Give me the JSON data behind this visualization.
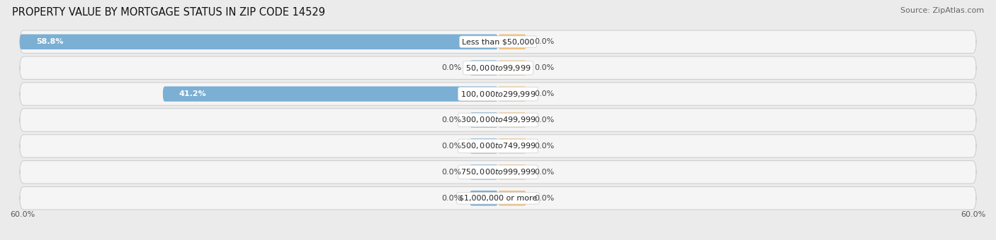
{
  "title": "PROPERTY VALUE BY MORTGAGE STATUS IN ZIP CODE 14529",
  "source": "Source: ZipAtlas.com",
  "categories": [
    "Less than $50,000",
    "$50,000 to $99,999",
    "$100,000 to $299,999",
    "$300,000 to $499,999",
    "$500,000 to $749,999",
    "$750,000 to $999,999",
    "$1,000,000 or more"
  ],
  "without_mortgage": [
    58.8,
    0.0,
    41.2,
    0.0,
    0.0,
    0.0,
    0.0
  ],
  "with_mortgage": [
    0.0,
    0.0,
    0.0,
    0.0,
    0.0,
    0.0,
    0.0
  ],
  "without_mortgage_color": "#7bafd4",
  "with_mortgage_color": "#f0c080",
  "min_bar_width": 3.5,
  "max_val": 60.0,
  "bar_height": 0.58,
  "background_color": "#ebebeb",
  "row_inner_bg": "#f5f5f5",
  "row_edge_color": "#d0d0d0",
  "title_fontsize": 10.5,
  "source_fontsize": 8,
  "label_fontsize": 8,
  "category_fontsize": 8,
  "axis_fontsize": 8
}
